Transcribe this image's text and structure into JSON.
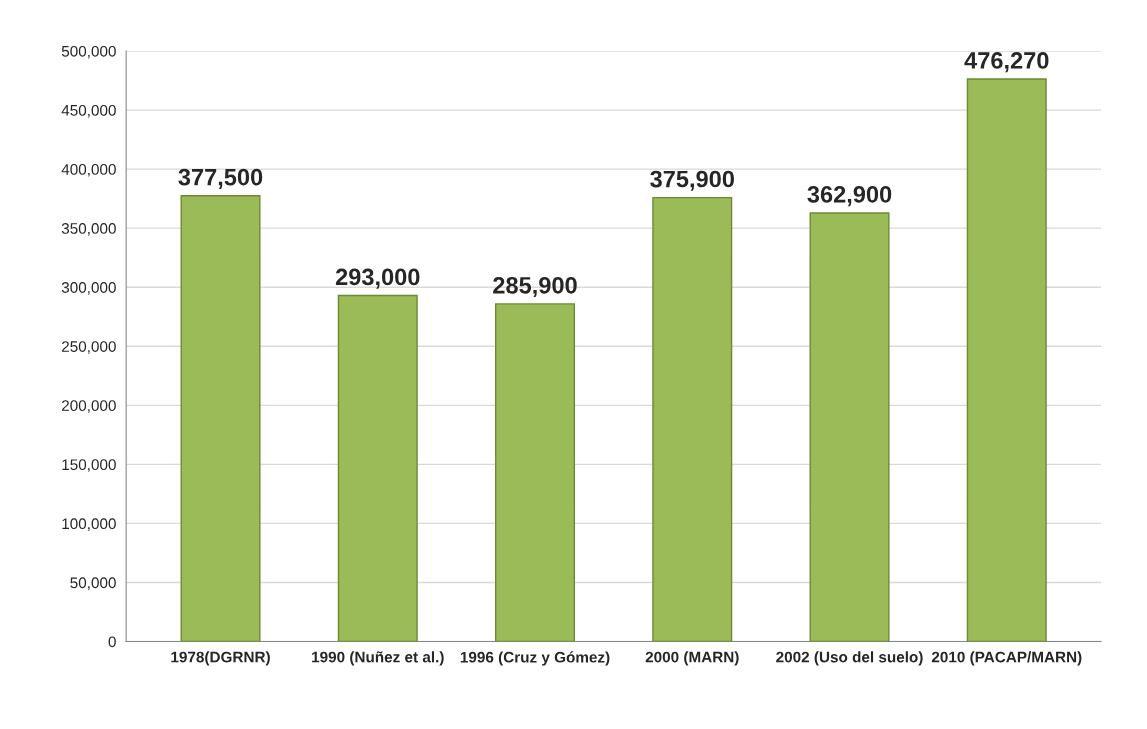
{
  "chart_data": {
    "type": "bar",
    "categories": [
      "1978(DGRNR)",
      "1990 (Nuñez et al.)",
      "1996 (Cruz y Gómez)",
      "2000 (MARN)",
      "2002 (Uso del suelo)",
      "2010 (PACAP/MARN)"
    ],
    "values": [
      377500,
      293000,
      285900,
      375900,
      362900,
      476270
    ],
    "value_labels": [
      "377,500",
      "293,000",
      "285,900",
      "375,900",
      "362,900",
      "476,270"
    ],
    "color": "#9bbb59",
    "ylim": [
      0,
      500000
    ],
    "yticks": [
      {
        "value": 0,
        "label": "0"
      },
      {
        "value": 50000,
        "label": "50,000"
      },
      {
        "value": 100000,
        "label": "100,000"
      },
      {
        "value": 150000,
        "label": "150,000"
      },
      {
        "value": 200000,
        "label": "200,000"
      },
      {
        "value": 250000,
        "label": "250,000"
      },
      {
        "value": 300000,
        "label": "300,000"
      },
      {
        "value": 350000,
        "label": "350,000"
      },
      {
        "value": 400000,
        "label": "400,000"
      },
      {
        "value": 450000,
        "label": "450,000"
      },
      {
        "value": 500000,
        "label": "500,000"
      }
    ],
    "grid": "y"
  }
}
